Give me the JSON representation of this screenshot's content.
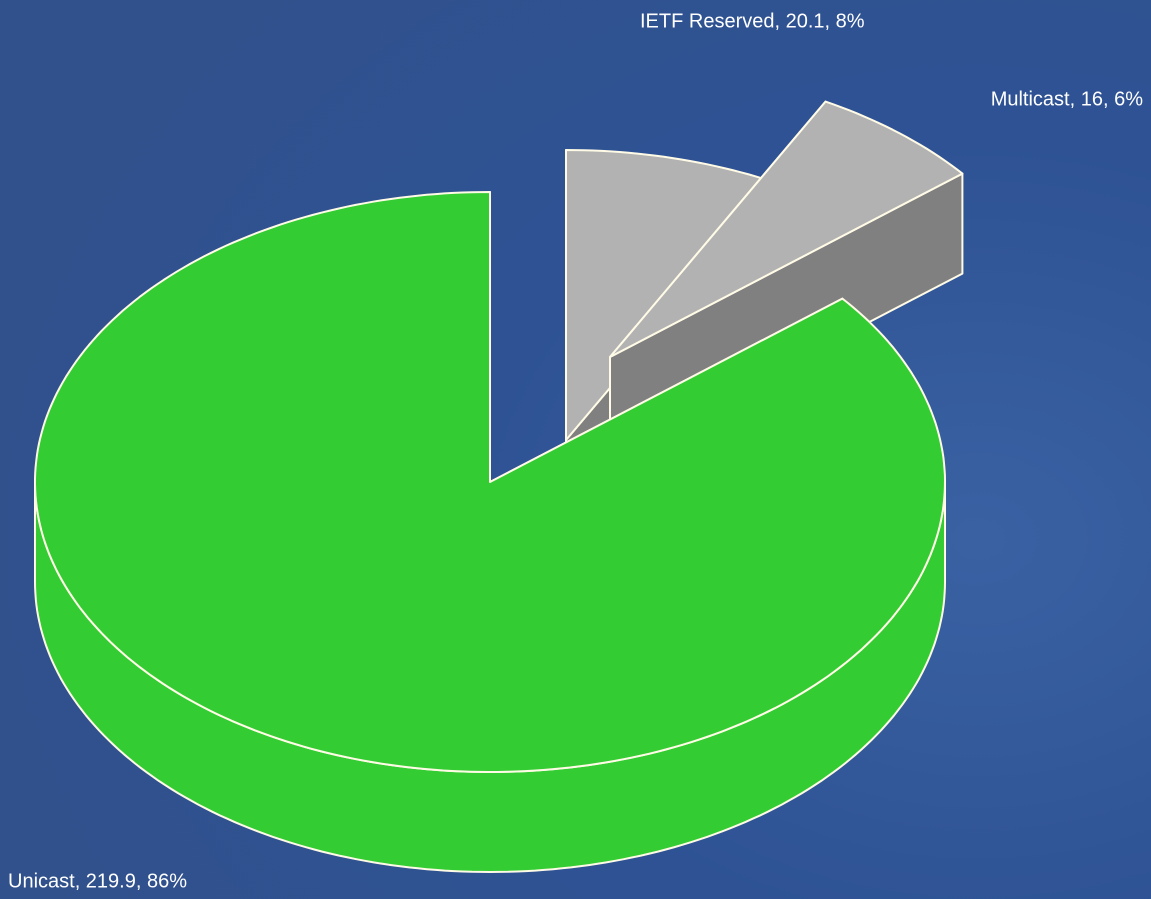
{
  "chart_data": {
    "type": "pie3d",
    "values": [
      219.9,
      20.1,
      16
    ],
    "value_labels": [
      "Unicast, 219.9, 86%",
      "IETF Reserved, 20.1, 8%",
      "Multicast, 16, 6%"
    ],
    "colors": [
      "#33cc33",
      "#b2b2b2",
      "#b2b2b2"
    ]
  }
}
